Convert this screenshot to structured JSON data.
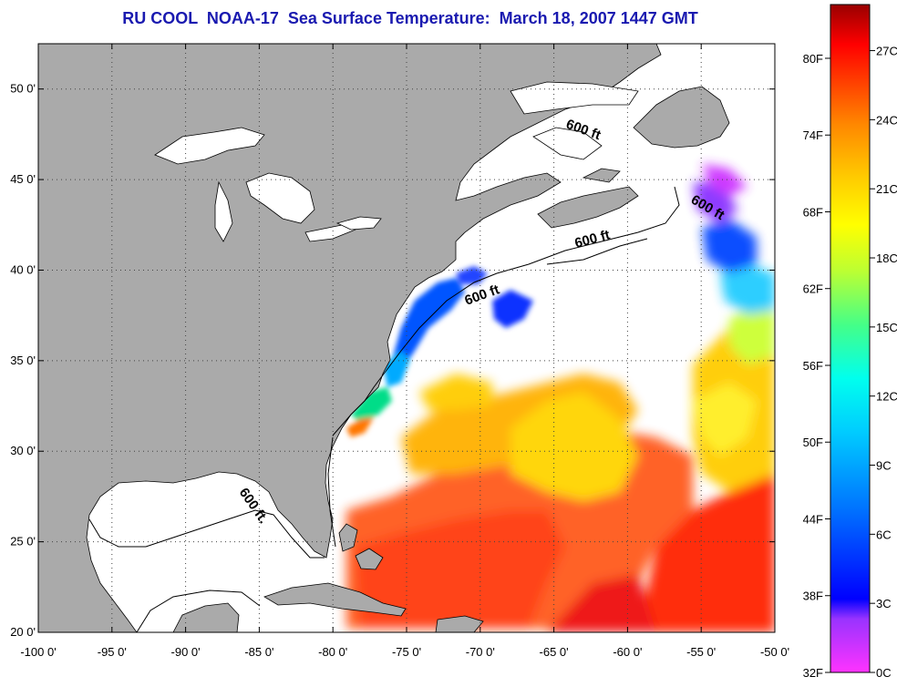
{
  "title": "RU COOL  NOAA-17  Sea Surface Temperature:  March 18, 2007 1447 GMT",
  "axes": {
    "lat_ticks": [
      {
        "value": 50,
        "label": "50 0'"
      },
      {
        "value": 45,
        "label": "45 0'"
      },
      {
        "value": 40,
        "label": "40 0'"
      },
      {
        "value": 35,
        "label": "35 0'"
      },
      {
        "value": 30,
        "label": "30 0'"
      },
      {
        "value": 25,
        "label": "25 0'"
      },
      {
        "value": 20,
        "label": "20 0'"
      }
    ],
    "lon_ticks": [
      {
        "value": -100,
        "label": "-100 0'"
      },
      {
        "value": -95,
        "label": "-95 0'"
      },
      {
        "value": -90,
        "label": "-90 0'"
      },
      {
        "value": -85,
        "label": "-85 0'"
      },
      {
        "value": -80,
        "label": "-80 0'"
      },
      {
        "value": -75,
        "label": "-75 0'"
      },
      {
        "value": -70,
        "label": "-70 0'"
      },
      {
        "value": -65,
        "label": "-65 0'"
      },
      {
        "value": -60,
        "label": "-60 0'"
      },
      {
        "value": -55,
        "label": "-55 0'"
      },
      {
        "value": -50,
        "label": "-50 0'"
      }
    ],
    "lon_range": [
      -100,
      -50
    ],
    "lat_range": [
      20,
      52.5
    ]
  },
  "contour_labels": [
    "600 ft.",
    "600 ft",
    "600 ft",
    "600 ft",
    "600 ft"
  ],
  "colorbar": {
    "fahrenheit_labels": [
      "80F",
      "74F",
      "68F",
      "62F",
      "56F",
      "50F",
      "44F",
      "38F",
      "32F"
    ],
    "celsius_labels": [
      "27C",
      "24C",
      "21C",
      "18C",
      "15C",
      "12C",
      "9C",
      "6C",
      "3C",
      "0C"
    ],
    "colors": [
      "#ff33ff",
      "#9933ff",
      "#0000ff",
      "#0077ff",
      "#00ccff",
      "#00ffee",
      "#44ff88",
      "#bbff33",
      "#ffff00",
      "#ffcc00",
      "#ff8800",
      "#ff4400",
      "#ff0000",
      "#cc0000",
      "#990000"
    ]
  },
  "colors": {
    "land": "#aaaaaa",
    "water_no_data": "#ffffff",
    "title": "#1a1ab0"
  }
}
